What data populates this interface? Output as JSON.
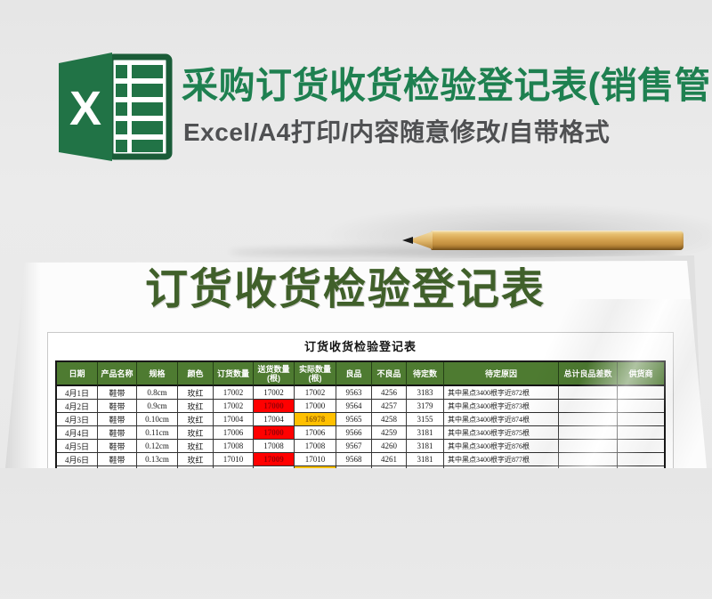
{
  "hero": {
    "title": "采购订货收货检验登记表(销售管...",
    "subtitle": "Excel/A4打印/内容随意修改/自带格式",
    "icon_letter": "X"
  },
  "sheet": {
    "big_title": "订货收货检验登记表",
    "table_title": "订货收货检验登记表"
  },
  "table": {
    "headers": [
      {
        "label": "日期"
      },
      {
        "label": "产品名称"
      },
      {
        "label": "规格"
      },
      {
        "label": "颜色"
      },
      {
        "label": "订货数量"
      },
      {
        "label": "送货数量",
        "sub": "(根)"
      },
      {
        "label": "实际数量",
        "sub": "(根)"
      },
      {
        "label": "良品"
      },
      {
        "label": "不良品"
      },
      {
        "label": "待定数"
      },
      {
        "label": "待定原因"
      },
      {
        "label": "总计良品差数"
      },
      {
        "label": "供货商"
      }
    ],
    "rows": [
      {
        "cells": [
          "4月1日",
          "鞋带",
          "0.8cm",
          "玫红",
          "17002",
          "17002",
          "17002",
          "9563",
          "4256",
          "3183",
          "其中黑点3400根字近872根",
          "",
          ""
        ],
        "highlights": {}
      },
      {
        "cells": [
          "4月2日",
          "鞋带",
          "0.9cm",
          "玫红",
          "17002",
          "17000",
          "17000",
          "9564",
          "4257",
          "3179",
          "其中黑点3400根字近873根",
          "",
          ""
        ],
        "highlights": {
          "5": "red"
        }
      },
      {
        "cells": [
          "4月3日",
          "鞋带",
          "0.10cm",
          "玫红",
          "17004",
          "17004",
          "16978",
          "9565",
          "4258",
          "3155",
          "其中黑点3400根字近874根",
          "",
          ""
        ],
        "highlights": {
          "6": "orange"
        }
      },
      {
        "cells": [
          "4月4日",
          "鞋带",
          "0.11cm",
          "玫红",
          "17006",
          "17000",
          "17006",
          "9566",
          "4259",
          "3181",
          "其中黑点3400根字近875根",
          "",
          ""
        ],
        "highlights": {
          "5": "red"
        }
      },
      {
        "cells": [
          "4月5日",
          "鞋带",
          "0.12cm",
          "玫红",
          "17008",
          "17008",
          "17008",
          "9567",
          "4260",
          "3181",
          "其中黑点3400根字近876根",
          "",
          ""
        ],
        "highlights": {}
      },
      {
        "cells": [
          "4月6日",
          "鞋带",
          "0.13cm",
          "玫红",
          "17010",
          "17009",
          "17010",
          "9568",
          "4261",
          "3181",
          "其中黑点3400根字近877根",
          "",
          ""
        ],
        "highlights": {
          "5": "red"
        }
      },
      {
        "cells": [
          "",
          "",
          "",
          "",
          "",
          "",
          "",
          "",
          "",
          "",
          "",
          "",
          ""
        ],
        "highlights": {
          "6": "orange"
        }
      }
    ]
  },
  "colors": {
    "accent_green": "#1e8050",
    "excel_green": "#217346",
    "excel_green_dark": "#1a5c38",
    "header_green": "#4e7b31",
    "big_title_green": "#40602a",
    "subtitle_gray": "#4f5052",
    "highlight_red": "#ff0000",
    "highlight_red_text": "#9c0006",
    "highlight_orange": "#ffc000",
    "highlight_orange_text": "#9c6500"
  }
}
